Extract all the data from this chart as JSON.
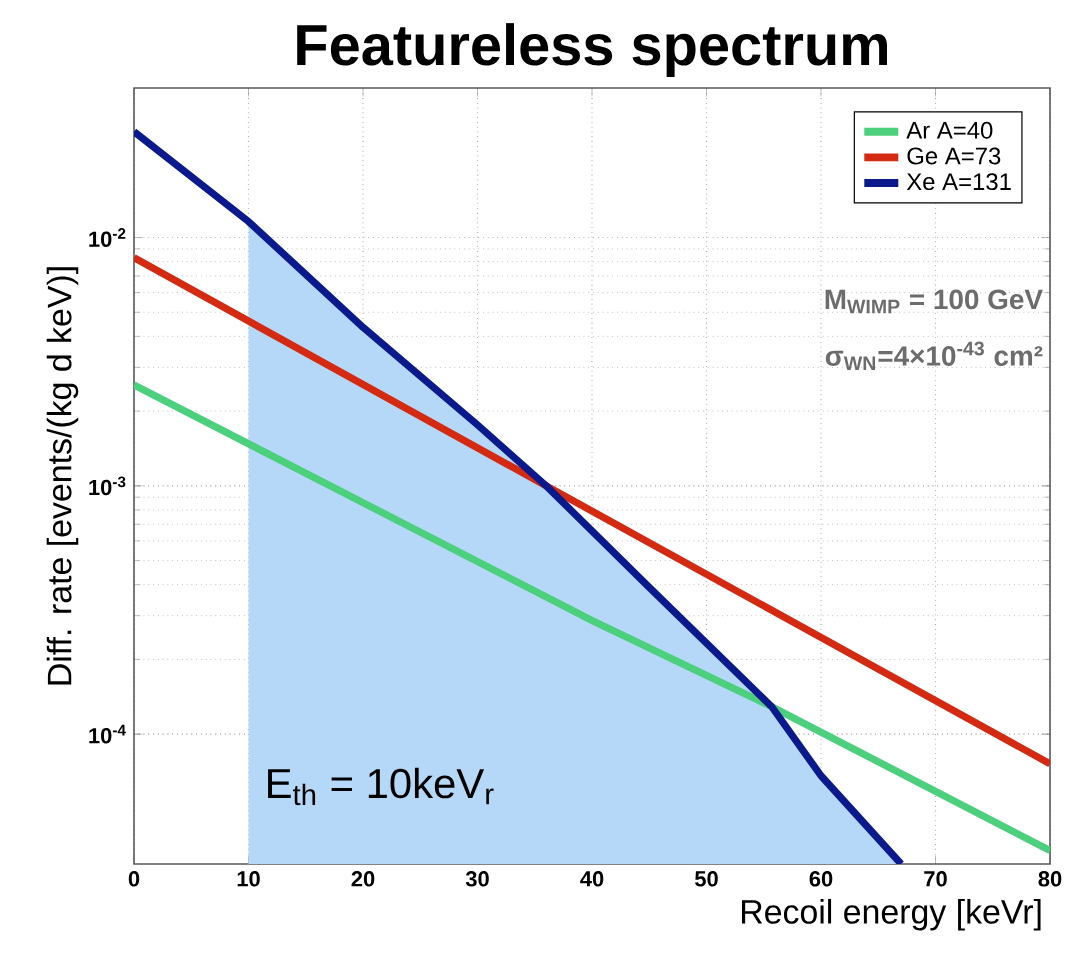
{
  "chart_data": {
    "type": "line",
    "title": "Featureless spectrum",
    "xlabel": "Recoil energy [keVr]",
    "ylabel": "Diff. rate [events/(kg d keV)]",
    "xlim": [
      0,
      80
    ],
    "ylim": [
      3e-05,
      0.04
    ],
    "xticks": [
      0,
      10,
      20,
      30,
      40,
      50,
      60,
      70,
      80
    ],
    "yticks": [
      {
        "value": 0.0001,
        "label": "10$^{-4}$"
      },
      {
        "value": 0.001,
        "label": "10$^{-3}$"
      },
      {
        "value": 0.01,
        "label": "10$^{-2}$"
      }
    ],
    "log": "y",
    "grid": true,
    "legend": "top right",
    "marker": "none",
    "line_style": "solid",
    "series": [
      {
        "type": "area",
        "color": "#b5d8f8",
        "x": [
          10,
          20,
          30,
          36,
          45,
          55.7,
          60,
          67
        ],
        "values": [
          0.0116,
          0.00435,
          0.00176,
          0.001,
          0.00039,
          0.000129,
          6.8e-05,
          3e-05
        ]
      },
      {
        "name": "Ar  A=40",
        "color": "#4cd07d",
        "x": [
          0,
          40,
          55.7,
          80
        ],
        "values": [
          0.00255,
          0.000287,
          0.000129,
          3.4e-05
        ]
      },
      {
        "name": "Ge  A=73",
        "color": "#d42a12",
        "x": [
          0,
          36,
          80
        ],
        "values": [
          0.0083,
          0.001,
          7.6e-05
        ]
      },
      {
        "name": "Xe  A=131",
        "color": "#0a1a8c",
        "x": [
          0,
          10,
          20,
          30,
          36,
          45,
          55.7,
          60,
          67
        ],
        "values": [
          0.0267,
          0.0116,
          0.00435,
          0.00176,
          0.001,
          0.00039,
          0.000129,
          6.8e-05,
          3e-05
        ]
      }
    ],
    "annotations": [
      "E$_{th}$ = 10keV$_{r}$",
      "M$_{WIMP}$ = 100 GeV",
      "σ$_{WN}$=4×10$^{-43}$ cm²"
    ]
  }
}
